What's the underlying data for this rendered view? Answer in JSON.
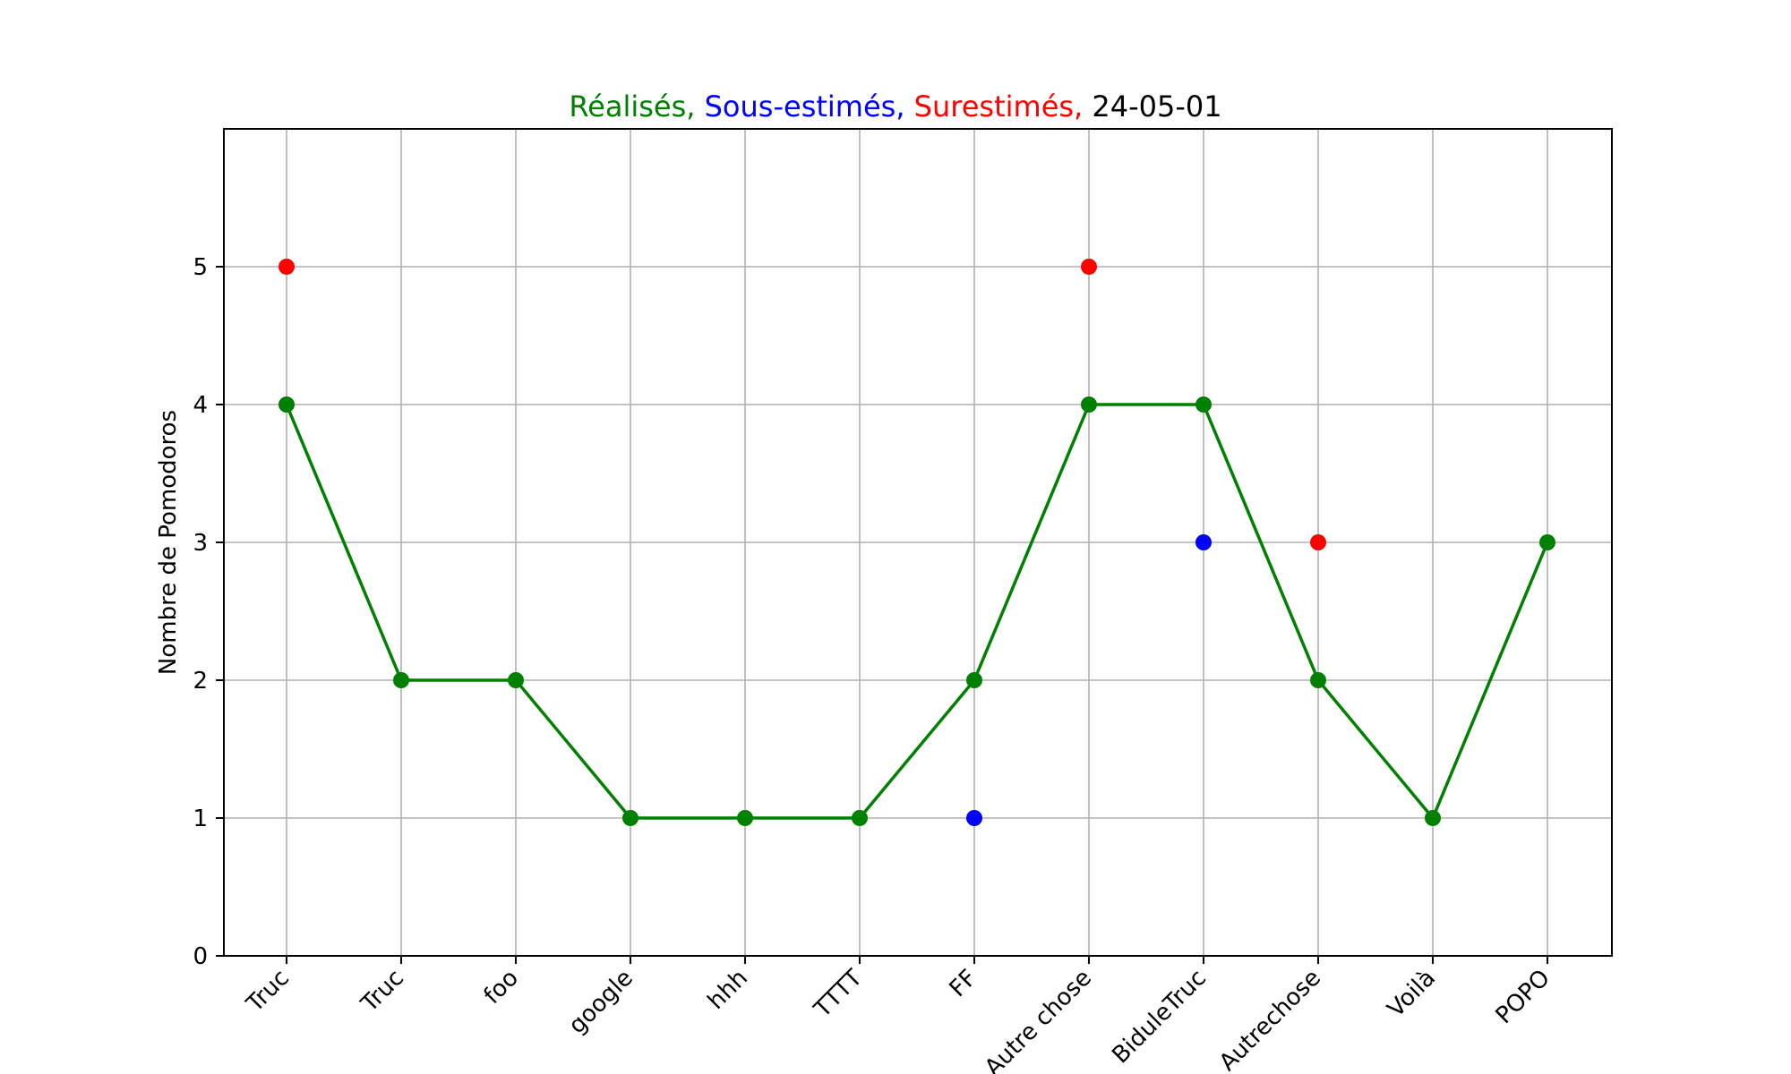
{
  "chart_data": {
    "type": "line",
    "title_parts": [
      {
        "text": "Réalisés,",
        "color": "#008000"
      },
      {
        "text": "Sous-estimés,",
        "color": "#0000ff"
      },
      {
        "text": "Surestimés,",
        "color": "#ff0000"
      },
      {
        "text": "24-05-01",
        "color": "#000000"
      }
    ],
    "xlabel": "",
    "ylabel": "Nombre de Pomodoros",
    "ylim": [
      0,
      6
    ],
    "yticks": [
      0,
      1,
      2,
      3,
      4,
      5
    ],
    "grid": true,
    "categories": [
      "Truc",
      "Truc",
      "foo",
      "google",
      "hhh",
      "TTTT",
      "FF",
      "Autre chose",
      "BiduleTruc",
      "Autrechose",
      "Voilà",
      "POPO"
    ],
    "series": [
      {
        "key": "realises",
        "style": "line+markers",
        "color": "#008000",
        "values": [
          4,
          2,
          2,
          1,
          1,
          1,
          2,
          4,
          4,
          2,
          1,
          3
        ]
      },
      {
        "key": "sous_estimes",
        "style": "markers",
        "color": "#0000ff",
        "values": [
          null,
          null,
          null,
          null,
          null,
          null,
          1,
          null,
          3,
          null,
          null,
          null
        ]
      },
      {
        "key": "surestimes",
        "style": "markers",
        "color": "#ff0000",
        "values": [
          5,
          null,
          null,
          null,
          null,
          null,
          null,
          5,
          null,
          3,
          null,
          null
        ]
      }
    ]
  }
}
